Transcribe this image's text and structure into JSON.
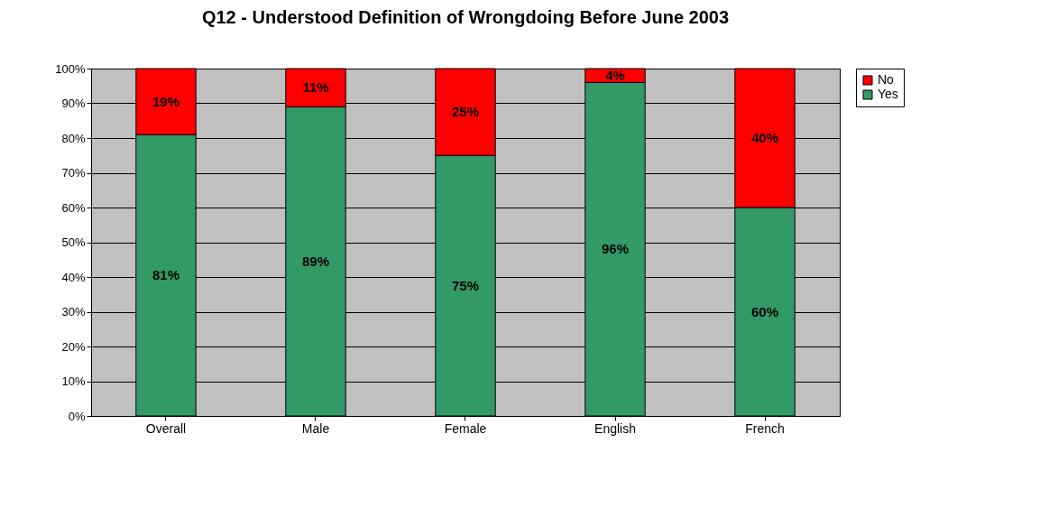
{
  "chart_data": {
    "type": "bar",
    "title": "Q12 - Understood Definition of Wrongdoing Before June 2003",
    "categories": [
      "Overall",
      "Male",
      "Female",
      "English",
      "French"
    ],
    "stacked": true,
    "series": [
      {
        "name": "Yes",
        "color": "#339966",
        "values": [
          81,
          89,
          75,
          96,
          60
        ],
        "value_labels": [
          "81%",
          "89%",
          "75%",
          "96%",
          "60%"
        ]
      },
      {
        "name": "No",
        "color": "#ff0000",
        "values": [
          19,
          11,
          25,
          4,
          40
        ],
        "value_labels": [
          "19%",
          "11%",
          "25%",
          "4%",
          "40%"
        ]
      }
    ],
    "ylim": [
      0,
      100
    ],
    "yticks": [
      {
        "value": 0,
        "label": "0%"
      },
      {
        "value": 10,
        "label": "10%"
      },
      {
        "value": 20,
        "label": "20%"
      },
      {
        "value": 30,
        "label": "30%"
      },
      {
        "value": 40,
        "label": "40%"
      },
      {
        "value": 50,
        "label": "50%"
      },
      {
        "value": 60,
        "label": "60%"
      },
      {
        "value": 70,
        "label": "70%"
      },
      {
        "value": 80,
        "label": "80%"
      },
      {
        "value": 90,
        "label": "90%"
      },
      {
        "value": 100,
        "label": "100%"
      }
    ],
    "grid": "y",
    "legend": "right"
  }
}
